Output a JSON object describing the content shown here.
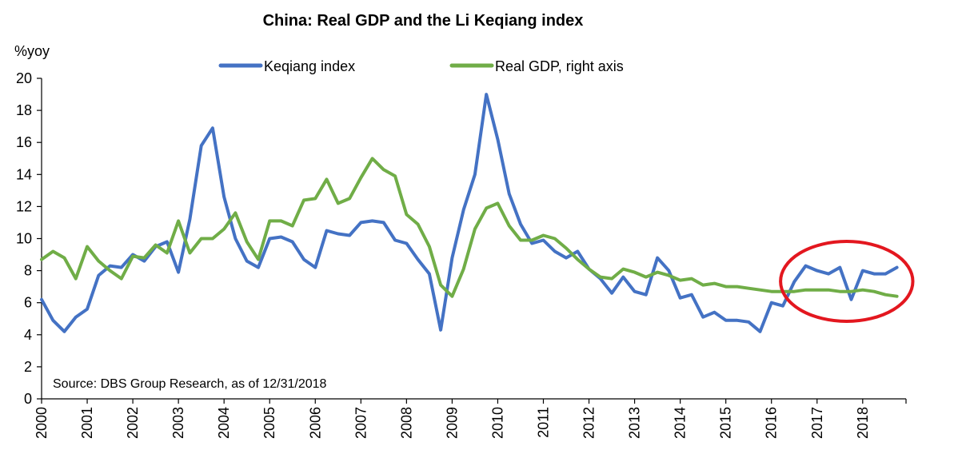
{
  "chart_data": {
    "type": "line",
    "title": "China: Real GDP and the Li Keqiang index",
    "ylabel": "%yoy",
    "xlabel": "",
    "ylim": [
      0,
      20
    ],
    "yticks": [
      0,
      2,
      4,
      6,
      8,
      10,
      12,
      14,
      16,
      18,
      20
    ],
    "xlim": [
      2000,
      2018.95
    ],
    "xticks": [
      "2000",
      "2001",
      "2002",
      "2003",
      "2004",
      "2005",
      "2006",
      "2007",
      "2008",
      "2009",
      "2010",
      "2011",
      "2012",
      "2013",
      "2014",
      "2015",
      "2016",
      "2017",
      "2018"
    ],
    "legend_position": "top",
    "grid": false,
    "source": "Source: DBS Group Research, as of 12/31/2018",
    "annotation": {
      "shape": "ellipse",
      "color": "#e3171f",
      "covers_x_range": [
        2016.2,
        2019.1
      ]
    },
    "series": [
      {
        "name": "Keqiang index",
        "color": "#4472c4",
        "x": [
          2000.0,
          2000.25,
          2000.5,
          2000.75,
          2001.0,
          2001.25,
          2001.5,
          2001.75,
          2002.0,
          2002.25,
          2002.5,
          2002.75,
          2003.0,
          2003.25,
          2003.5,
          2003.75,
          2004.0,
          2004.25,
          2004.5,
          2004.75,
          2005.0,
          2005.25,
          2005.5,
          2005.75,
          2006.0,
          2006.25,
          2006.5,
          2006.75,
          2007.0,
          2007.25,
          2007.5,
          2007.75,
          2008.0,
          2008.25,
          2008.5,
          2008.75,
          2009.0,
          2009.25,
          2009.5,
          2009.75,
          2010.0,
          2010.25,
          2010.5,
          2010.75,
          2011.0,
          2011.25,
          2011.5,
          2011.75,
          2012.0,
          2012.25,
          2012.5,
          2012.75,
          2013.0,
          2013.25,
          2013.5,
          2013.75,
          2014.0,
          2014.25,
          2014.5,
          2014.75,
          2015.0,
          2015.25,
          2015.5,
          2015.75,
          2016.0,
          2016.25,
          2016.5,
          2016.75,
          2017.0,
          2017.25,
          2017.5,
          2017.75,
          2018.0,
          2018.25,
          2018.5,
          2018.75
        ],
        "values": [
          6.2,
          4.9,
          4.2,
          5.1,
          5.6,
          7.7,
          8.3,
          8.2,
          9.0,
          8.6,
          9.5,
          9.8,
          7.9,
          11.2,
          15.8,
          16.9,
          12.6,
          10.0,
          8.6,
          8.2,
          10.0,
          10.1,
          9.8,
          8.7,
          8.2,
          10.5,
          10.3,
          10.2,
          11.0,
          11.1,
          11.0,
          9.9,
          9.7,
          8.7,
          7.8,
          4.3,
          8.8,
          11.8,
          14.0,
          19.0,
          16.2,
          12.8,
          10.9,
          9.7,
          9.9,
          9.2,
          8.8,
          9.2,
          8.1,
          7.5,
          6.6,
          7.6,
          6.7,
          6.5,
          8.8,
          8.0,
          6.3,
          6.5,
          5.1,
          5.4,
          4.9,
          4.9,
          4.8,
          4.2,
          6.0,
          5.8,
          7.3,
          8.3,
          8.0,
          7.8,
          8.2,
          6.2,
          8.0,
          7.8,
          7.8,
          8.2
        ]
      },
      {
        "name": "Real GDP, right axis",
        "color": "#70ad47",
        "x": [
          2000.0,
          2000.25,
          2000.5,
          2000.75,
          2001.0,
          2001.25,
          2001.5,
          2001.75,
          2002.0,
          2002.25,
          2002.5,
          2002.75,
          2003.0,
          2003.25,
          2003.5,
          2003.75,
          2004.0,
          2004.25,
          2004.5,
          2004.75,
          2005.0,
          2005.25,
          2005.5,
          2005.75,
          2006.0,
          2006.25,
          2006.5,
          2006.75,
          2007.0,
          2007.25,
          2007.5,
          2007.75,
          2008.0,
          2008.25,
          2008.5,
          2008.75,
          2009.0,
          2009.25,
          2009.5,
          2009.75,
          2010.0,
          2010.25,
          2010.5,
          2010.75,
          2011.0,
          2011.25,
          2011.5,
          2011.75,
          2012.0,
          2012.25,
          2012.5,
          2012.75,
          2013.0,
          2013.25,
          2013.5,
          2013.75,
          2014.0,
          2014.25,
          2014.5,
          2014.75,
          2015.0,
          2015.25,
          2015.5,
          2015.75,
          2016.0,
          2016.25,
          2016.5,
          2016.75,
          2017.0,
          2017.25,
          2017.5,
          2017.75,
          2018.0,
          2018.25,
          2018.5,
          2018.75
        ],
        "values": [
          8.7,
          9.2,
          8.8,
          7.5,
          9.5,
          8.6,
          8.0,
          7.5,
          8.9,
          8.8,
          9.6,
          9.1,
          11.1,
          9.1,
          10.0,
          10.0,
          10.6,
          11.6,
          9.8,
          8.7,
          11.1,
          11.1,
          10.8,
          12.4,
          12.5,
          13.7,
          12.2,
          12.5,
          13.8,
          15.0,
          14.3,
          13.9,
          11.5,
          10.9,
          9.5,
          7.1,
          6.4,
          8.1,
          10.6,
          11.9,
          12.2,
          10.8,
          9.9,
          9.9,
          10.2,
          10.0,
          9.4,
          8.7,
          8.1,
          7.6,
          7.5,
          8.1,
          7.9,
          7.6,
          7.9,
          7.7,
          7.4,
          7.5,
          7.1,
          7.2,
          7.0,
          7.0,
          6.9,
          6.8,
          6.7,
          6.7,
          6.7,
          6.8,
          6.8,
          6.8,
          6.7,
          6.7,
          6.8,
          6.7,
          6.5,
          6.4
        ]
      }
    ]
  }
}
